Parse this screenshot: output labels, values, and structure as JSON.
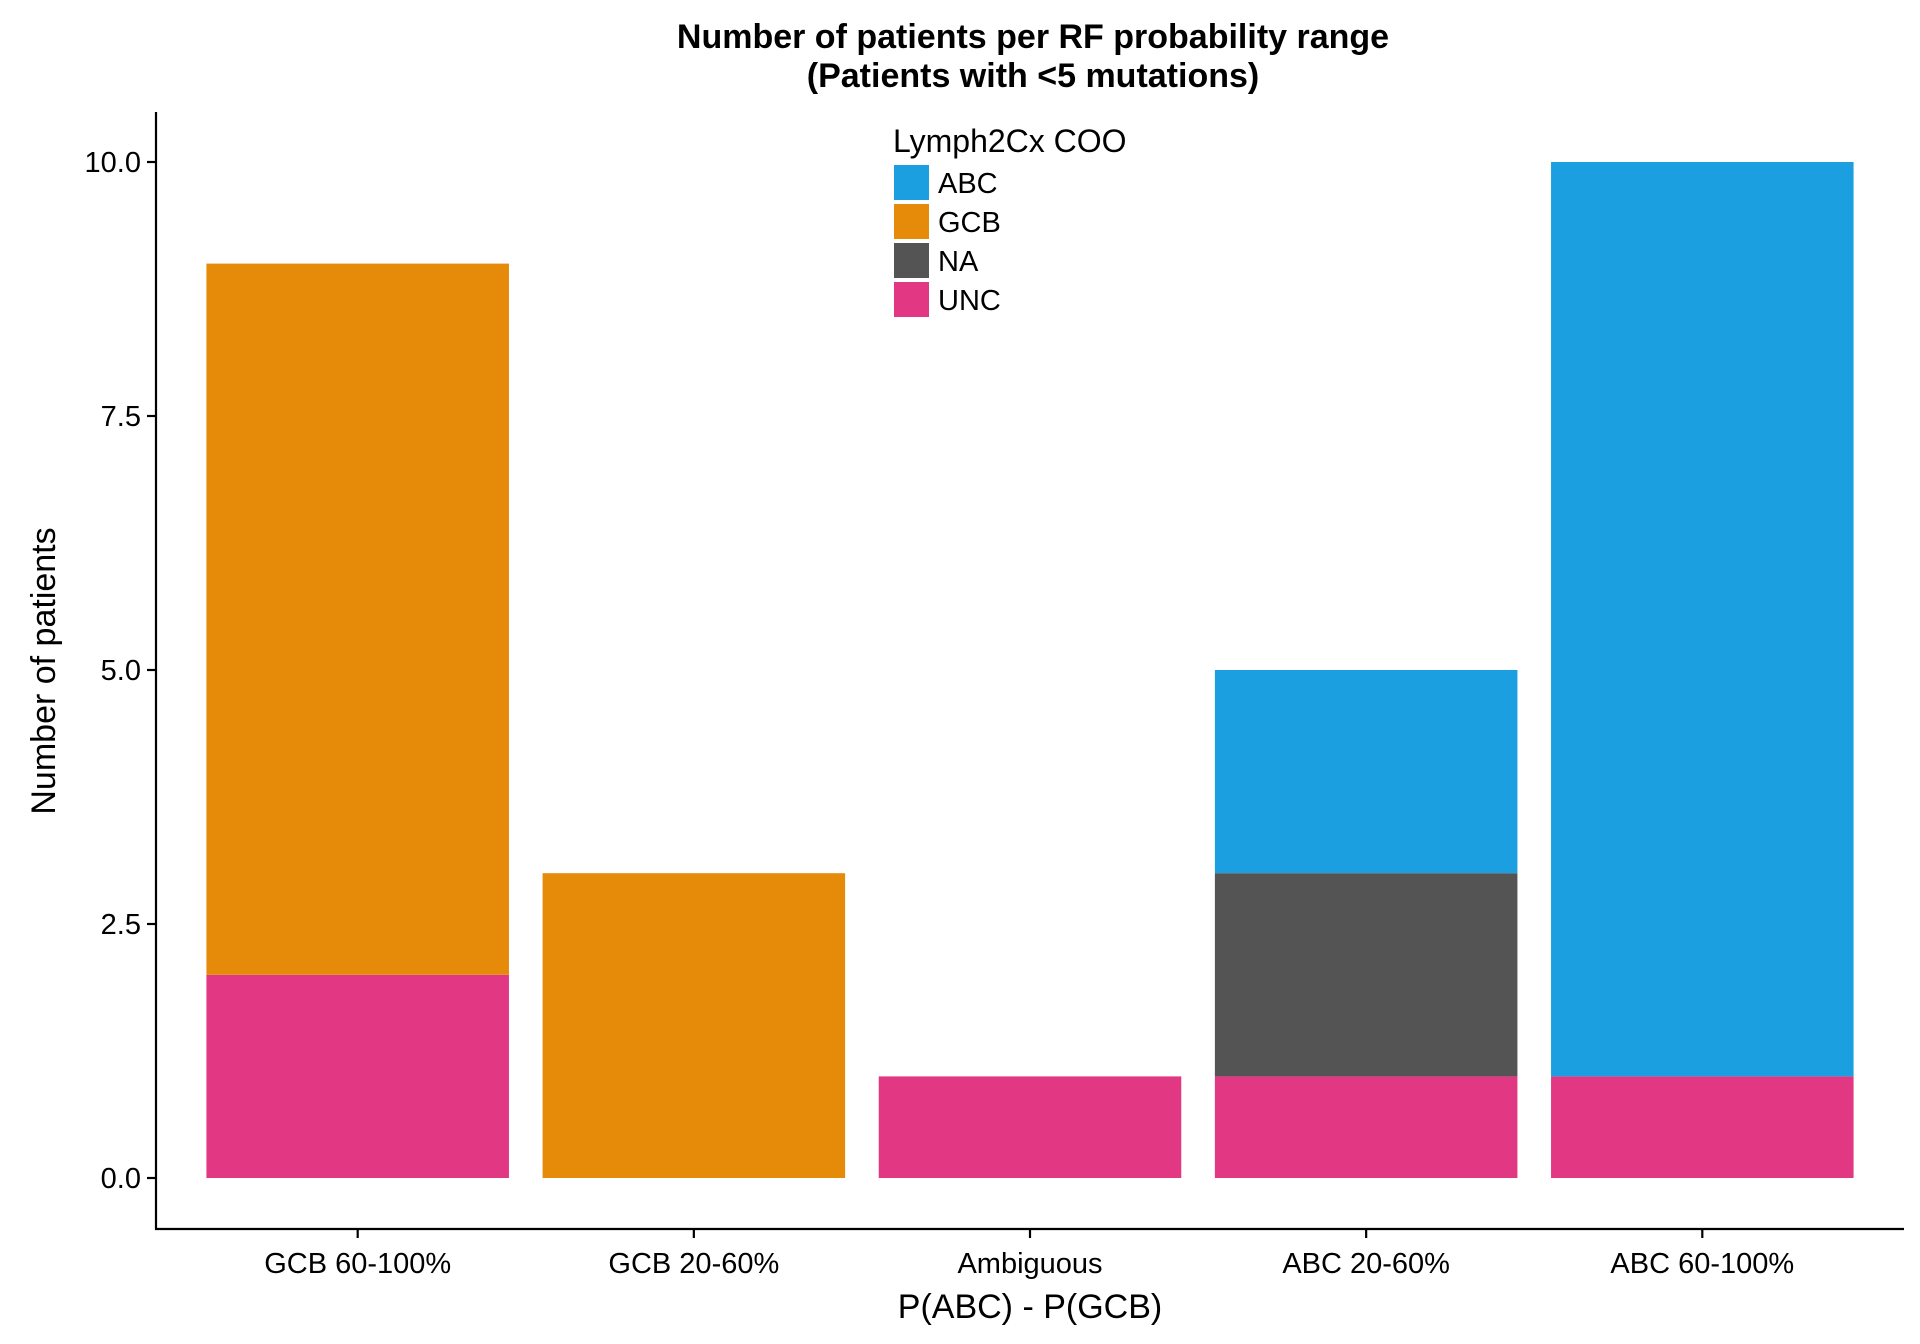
{
  "chart_data": {
    "type": "bar",
    "stacked": true,
    "title": "Number of patients per RF probability range",
    "subtitle": "(Patients with <5 mutations)",
    "xlabel": "P(ABC) - P(GCB)",
    "ylabel": "Number of patients",
    "categories": [
      "GCB 60-100%",
      "GCB 20-60%",
      "Ambiguous",
      "ABC 20-60%",
      "ABC 60-100%"
    ],
    "ylim": [
      0,
      10.5
    ],
    "yticks": [
      0.0,
      2.5,
      5.0,
      7.5,
      10.0
    ],
    "ytick_labels": [
      "0.0",
      "2.5",
      "5.0",
      "7.5",
      "10.0"
    ],
    "grid": false,
    "legend": {
      "title": "Lymph2Cx COO",
      "position": "top-center, inside plot",
      "entries": [
        "ABC",
        "GCB",
        "NA",
        "UNC"
      ]
    },
    "stack_order_bottom_to_top": [
      "UNC",
      "NA",
      "GCB",
      "ABC"
    ],
    "series": [
      {
        "name": "ABC",
        "color": "#1b9fe0",
        "values": [
          0,
          0,
          0,
          2,
          9
        ]
      },
      {
        "name": "GCB",
        "color": "#e68a0a",
        "values": [
          7,
          3,
          0,
          0,
          0
        ]
      },
      {
        "name": "NA",
        "color": "#545454",
        "values": [
          0,
          0,
          0,
          2,
          0
        ]
      },
      {
        "name": "UNC",
        "color": "#e23883",
        "values": [
          2,
          0,
          1,
          1,
          1
        ]
      }
    ]
  }
}
